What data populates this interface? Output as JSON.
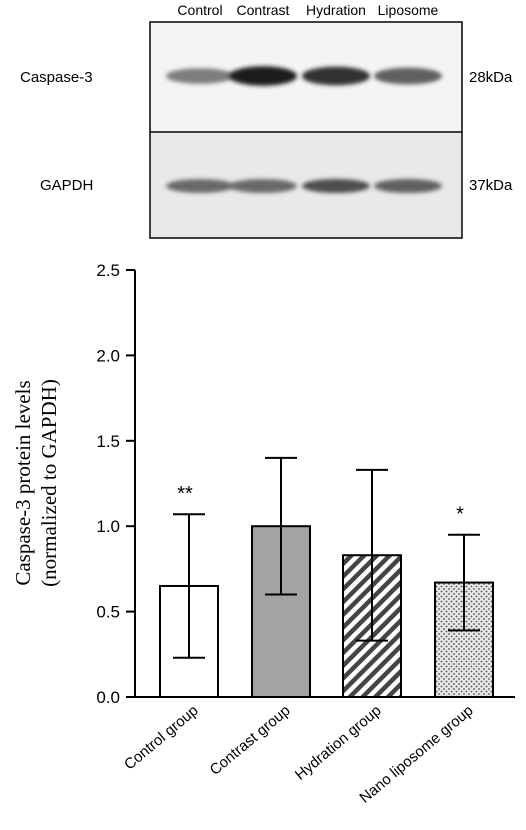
{
  "blot": {
    "lanes": [
      "Control",
      "Contrast",
      "Hydration",
      "Liposome"
    ],
    "rows": [
      {
        "label": "Caspase-3",
        "size": "28kDa",
        "intensity": [
          0.45,
          0.95,
          0.85,
          0.6
        ]
      },
      {
        "label": "GAPDH",
        "size": "37kDa",
        "intensity": [
          0.55,
          0.55,
          0.7,
          0.6
        ]
      }
    ]
  },
  "chart_data": {
    "type": "bar",
    "categories": [
      "Control group",
      "Contrast group",
      "Hydration group",
      "Nano liposome group"
    ],
    "values": [
      0.65,
      1.0,
      0.83,
      0.67
    ],
    "errors": [
      0.42,
      0.4,
      0.5,
      0.28
    ],
    "significance": [
      "**",
      "",
      "",
      "*"
    ],
    "fills": [
      "white",
      "gray",
      "diagonal-hatch",
      "dotted"
    ],
    "ylabel_line1": "Caspase-3  protein levels",
    "ylabel_line2": "(normalized to GAPDH)",
    "ylim": [
      0,
      2.5
    ],
    "yticks": [
      "0.0",
      "0.5",
      "1.0",
      "1.5",
      "2.0",
      "2.5"
    ],
    "grid": false
  }
}
